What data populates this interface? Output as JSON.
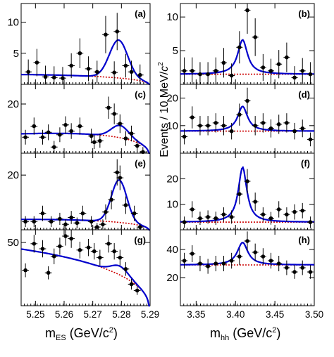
{
  "colors": {
    "fit": "#0000cc",
    "background": "#cc0000",
    "data": "#000000",
    "axis": "#000000",
    "page": "#ffffff"
  },
  "xlabels": {
    "left_main": "m",
    "left_sub": "ES",
    "left_units": " (GeV/c",
    "right_main": "m",
    "right_sub": "hh",
    "right_units": " (GeV/c",
    "sup": "2",
    "close": ")"
  },
  "ylabel": {
    "main": "Events / 10 MeV/",
    "italic": "c",
    "sup": "2"
  },
  "chart_data": [
    {
      "type": "scatter",
      "panel": "a",
      "tag": "(a)",
      "xlabel": "mES (GeV/c2)",
      "xlim": [
        5.245,
        5.29
      ],
      "ylim": [
        0,
        13
      ],
      "yticks": [
        5,
        10
      ],
      "xticks": [
        5.25,
        5.26,
        5.27,
        5.28,
        5.29
      ],
      "points": [
        [
          5.2475,
          2.0
        ],
        [
          5.2505,
          3.5
        ],
        [
          5.2535,
          1.2
        ],
        [
          5.2565,
          1.1
        ],
        [
          5.2595,
          1.0
        ],
        [
          5.2625,
          3.0
        ],
        [
          5.2655,
          5.0
        ],
        [
          5.2685,
          2.5
        ],
        [
          5.2715,
          2.0
        ],
        [
          5.2745,
          8.0
        ],
        [
          5.2775,
          1.9
        ],
        [
          5.2785,
          8.5
        ],
        [
          5.2815,
          3.0
        ],
        [
          5.2835,
          2.0
        ],
        [
          5.2865,
          1.5
        ]
      ],
      "yerr": [
        2.0,
        2.2,
        1.8,
        1.8,
        1.8,
        2.0,
        2.4,
        2.0,
        1.8,
        3.0,
        1.8,
        3.0,
        1.9,
        1.8,
        1.7
      ],
      "curves": [
        {
          "name": "fit",
          "peak": 6.1,
          "mu": 5.279,
          "sigma": 0.0032,
          "bg": 1.55,
          "c": -22
        },
        {
          "name": "bg",
          "bg": 1.55,
          "c": -22
        }
      ]
    },
    {
      "type": "scatter",
      "panel": "b",
      "tag": "(b)",
      "xlabel": "mhh (GeV/c2)",
      "xlim": [
        3.33,
        3.5
      ],
      "ylim": [
        0,
        12
      ],
      "yticks": [
        5,
        10
      ],
      "xticks": [
        3.35,
        3.4,
        3.45,
        3.5
      ],
      "points": [
        [
          3.335,
          2.0
        ],
        [
          3.345,
          2.0
        ],
        [
          3.355,
          1.5
        ],
        [
          3.365,
          1.5
        ],
        [
          3.375,
          2.0
        ],
        [
          3.385,
          3.2
        ],
        [
          3.395,
          1.3
        ],
        [
          3.405,
          5.5
        ],
        [
          3.415,
          11.0
        ],
        [
          3.425,
          7.0
        ],
        [
          3.435,
          2.5
        ],
        [
          3.445,
          2.0
        ],
        [
          3.455,
          3.0
        ],
        [
          3.465,
          4.0
        ],
        [
          3.475,
          1.0
        ],
        [
          3.485,
          2.0
        ],
        [
          3.495,
          1.5
        ]
      ],
      "yerr": [
        2.0,
        2.0,
        1.8,
        1.8,
        2.0,
        2.2,
        1.8,
        2.4,
        3.5,
        2.8,
        2.0,
        1.8,
        2.1,
        2.2,
        1.7,
        1.9,
        1.8
      ],
      "curves": [
        {
          "name": "fit",
          "peak": 5.1,
          "mu": 3.409,
          "gamma": 0.0075,
          "bg": 1.5
        },
        {
          "name": "bg",
          "bg": 1.5
        }
      ]
    },
    {
      "type": "scatter",
      "panel": "c",
      "tag": "(c)",
      "xlabel": "mES (GeV/c2)",
      "xlim": [
        5.245,
        5.29
      ],
      "ylim": [
        0,
        28
      ],
      "yticks": [
        20
      ],
      "xticks": [
        5.25,
        5.26,
        5.27,
        5.28,
        5.29
      ],
      "points": [
        [
          5.2465,
          6.5
        ],
        [
          5.2495,
          11.0
        ],
        [
          5.2525,
          6.5
        ],
        [
          5.2545,
          8.5
        ],
        [
          5.2565,
          2.5
        ],
        [
          5.2585,
          7.5
        ],
        [
          5.2605,
          11.5
        ],
        [
          5.2625,
          9.0
        ],
        [
          5.2655,
          11.0
        ],
        [
          5.2695,
          7.0
        ],
        [
          5.2705,
          4.5
        ],
        [
          5.2725,
          5.0
        ],
        [
          5.2755,
          18.5
        ],
        [
          5.2775,
          16.0
        ],
        [
          5.2795,
          12.0
        ],
        [
          5.2815,
          6.0
        ],
        [
          5.2835,
          8.0
        ],
        [
          5.2855,
          3.0
        ],
        [
          5.2875,
          0.5
        ]
      ],
      "yerr": [
        3.0,
        3.5,
        3.0,
        3.2,
        2.5,
        3.0,
        3.5,
        3.2,
        3.5,
        3.0,
        2.8,
        2.8,
        4.5,
        4.2,
        3.8,
        3.0,
        3.2,
        2.5,
        2.0
      ],
      "curves": [
        {
          "name": "fit",
          "peak": 5.0,
          "mu": 5.2795,
          "sigma": 0.003,
          "bg": 8.0,
          "c": -40
        },
        {
          "name": "bg",
          "bg": 8.0,
          "c": -40
        }
      ]
    },
    {
      "type": "scatter",
      "panel": "d",
      "tag": "(d)",
      "xlabel": "mhh (GeV/c2)",
      "xlim": [
        3.33,
        3.5
      ],
      "ylim": [
        0,
        25
      ],
      "yticks": [
        10,
        20
      ],
      "xticks": [
        3.35,
        3.4,
        3.45,
        3.5
      ],
      "points": [
        [
          3.335,
          6.0
        ],
        [
          3.345,
          13.0
        ],
        [
          3.355,
          10.0
        ],
        [
          3.365,
          10.0
        ],
        [
          3.375,
          11.0
        ],
        [
          3.385,
          10.0
        ],
        [
          3.395,
          8.0
        ],
        [
          3.405,
          14.0
        ],
        [
          3.415,
          19.0
        ],
        [
          3.425,
          10.0
        ],
        [
          3.435,
          11.0
        ],
        [
          3.445,
          9.0
        ],
        [
          3.455,
          10.5
        ],
        [
          3.465,
          11.0
        ],
        [
          3.475,
          8.0
        ],
        [
          3.485,
          9.0
        ],
        [
          3.495,
          5.0
        ]
      ],
      "yerr": [
        2.8,
        4.0,
        3.5,
        3.5,
        3.5,
        3.5,
        3.0,
        4.0,
        4.8,
        3.5,
        3.5,
        3.3,
        3.5,
        3.5,
        3.0,
        3.2,
        2.5
      ],
      "curves": [
        {
          "name": "fit",
          "peak": 9.0,
          "mu": 3.409,
          "gamma": 0.0075,
          "bg": 8.0
        },
        {
          "name": "bg",
          "bg": 8.0
        }
      ]
    },
    {
      "type": "scatter",
      "panel": "e",
      "tag": "(e)",
      "xlabel": "mES (GeV/c2)",
      "xlim": [
        5.245,
        5.29
      ],
      "ylim": [
        0,
        28
      ],
      "yticks": [
        20
      ],
      "xticks": [
        5.25,
        5.26,
        5.27,
        5.28,
        5.29
      ],
      "points": [
        [
          5.2465,
          3.0
        ],
        [
          5.2495,
          3.0
        ],
        [
          5.2525,
          6.0
        ],
        [
          5.2555,
          3.0
        ],
        [
          5.2585,
          4.0
        ],
        [
          5.2605,
          2.0
        ],
        [
          5.2625,
          4.5
        ],
        [
          5.2645,
          2.5
        ],
        [
          5.2665,
          6.0
        ],
        [
          5.2695,
          3.0
        ],
        [
          5.2715,
          1.0
        ],
        [
          5.2735,
          2.0
        ],
        [
          5.2745,
          6.5
        ],
        [
          5.2765,
          11.0
        ],
        [
          5.2785,
          21.0
        ],
        [
          5.2795,
          19.0
        ],
        [
          5.2815,
          9.0
        ],
        [
          5.2845,
          6.0
        ],
        [
          5.2865,
          1.0
        ]
      ],
      "yerr": [
        2.0,
        2.0,
        2.8,
        2.0,
        2.2,
        1.8,
        2.4,
        2.0,
        2.8,
        2.0,
        1.5,
        1.8,
        2.8,
        3.5,
        4.8,
        4.5,
        3.2,
        2.8,
        1.5
      ],
      "curves": [
        {
          "name": "fit",
          "peak": 15.5,
          "mu": 5.2792,
          "sigma": 0.0027,
          "bg": 3.8,
          "c": -30
        },
        {
          "name": "bg",
          "bg": 3.8,
          "c": -30
        }
      ]
    },
    {
      "type": "scatter",
      "panel": "f",
      "tag": "(f)",
      "xlabel": "mhh (GeV/c2)",
      "xlim": [
        3.33,
        3.5
      ],
      "ylim": [
        0,
        30
      ],
      "yticks": [
        10,
        20
      ],
      "xticks": [
        3.35,
        3.4,
        3.45,
        3.5
      ],
      "points": [
        [
          3.335,
          3.0
        ],
        [
          3.345,
          8.0
        ],
        [
          3.355,
          4.5
        ],
        [
          3.365,
          5.0
        ],
        [
          3.375,
          4.5
        ],
        [
          3.385,
          6.0
        ],
        [
          3.395,
          5.0
        ],
        [
          3.405,
          14.0
        ],
        [
          3.415,
          19.0
        ],
        [
          3.425,
          11.0
        ],
        [
          3.435,
          6.0
        ],
        [
          3.445,
          4.5
        ],
        [
          3.455,
          8.0
        ],
        [
          3.465,
          6.0
        ],
        [
          3.475,
          7.0
        ],
        [
          3.485,
          7.5
        ],
        [
          3.495,
          3.0
        ]
      ],
      "yerr": [
        2.2,
        3.2,
        2.6,
        2.6,
        2.6,
        2.8,
        2.6,
        4.0,
        4.8,
        3.6,
        2.8,
        2.5,
        3.2,
        2.8,
        3.0,
        3.0,
        2.2
      ],
      "curves": [
        {
          "name": "fit",
          "peak": 21.5,
          "mu": 3.409,
          "gamma": 0.0065,
          "bg": 3.0
        },
        {
          "name": "bg",
          "bg": 3.0
        }
      ]
    },
    {
      "type": "scatter",
      "panel": "g",
      "tag": "(g)",
      "xlabel": "mES (GeV/c2)",
      "xlim": [
        5.245,
        5.29
      ],
      "ylim": [
        0,
        60
      ],
      "yticks": [
        50
      ],
      "xticks": [
        5.25,
        5.26,
        5.27,
        5.28,
        5.29
      ],
      "points": [
        [
          5.2465,
          28.0
        ],
        [
          5.2495,
          49.0
        ],
        [
          5.2525,
          45.0
        ],
        [
          5.2545,
          26.0
        ],
        [
          5.2565,
          39.0
        ],
        [
          5.2585,
          47.0
        ],
        [
          5.2605,
          55.0
        ],
        [
          5.2625,
          53.0
        ],
        [
          5.2655,
          44.0
        ],
        [
          5.2685,
          46.0
        ],
        [
          5.2705,
          43.0
        ],
        [
          5.2725,
          38.0
        ],
        [
          5.2755,
          49.0
        ],
        [
          5.2775,
          43.0
        ],
        [
          5.2795,
          38.0
        ],
        [
          5.2815,
          29.0
        ],
        [
          5.2835,
          17.0
        ],
        [
          5.2855,
          12.0
        ]
      ],
      "yerr": [
        5.5,
        7.0,
        6.8,
        5.2,
        6.2,
        6.8,
        7.5,
        7.3,
        6.6,
        6.8,
        6.5,
        6.2,
        7.0,
        6.5,
        6.2,
        5.4,
        4.2,
        3.5
      ],
      "curves": [
        {
          "name": "fit",
          "peak": 7.0,
          "mu": 5.2795,
          "sigma": 0.003,
          "bg": 43.0,
          "c": -10
        },
        {
          "name": "bg",
          "bg": 43.0,
          "c": -10
        }
      ]
    },
    {
      "type": "scatter",
      "panel": "h",
      "tag": "(h)",
      "xlabel": "mhh (GeV/c2)",
      "xlim": [
        3.33,
        3.5
      ],
      "ylim": [
        0,
        54
      ],
      "yticks": [
        20,
        40
      ],
      "xticks": [
        3.35,
        3.4,
        3.45,
        3.5
      ],
      "points": [
        [
          3.335,
          32.0
        ],
        [
          3.345,
          37.0
        ],
        [
          3.355,
          30.0
        ],
        [
          3.365,
          28.0
        ],
        [
          3.375,
          30.0
        ],
        [
          3.385,
          30.0
        ],
        [
          3.395,
          32.0
        ],
        [
          3.405,
          35.0
        ],
        [
          3.415,
          46.0
        ],
        [
          3.425,
          38.0
        ],
        [
          3.435,
          35.0
        ],
        [
          3.445,
          32.0
        ],
        [
          3.455,
          30.0
        ],
        [
          3.465,
          27.0
        ],
        [
          3.475,
          24.0
        ],
        [
          3.485,
          27.0
        ],
        [
          3.495,
          24.0
        ]
      ],
      "yerr": [
        5.6,
        6.0,
        5.5,
        5.3,
        5.5,
        5.5,
        5.6,
        5.9,
        6.8,
        6.2,
        5.9,
        5.6,
        5.5,
        5.2,
        4.9,
        5.2,
        4.9
      ],
      "curves": [
        {
          "name": "fit",
          "peak": 16.0,
          "mu": 3.409,
          "gamma": 0.008,
          "bg": 29.0
        },
        {
          "name": "bg",
          "bg": 29.0
        }
      ]
    }
  ]
}
